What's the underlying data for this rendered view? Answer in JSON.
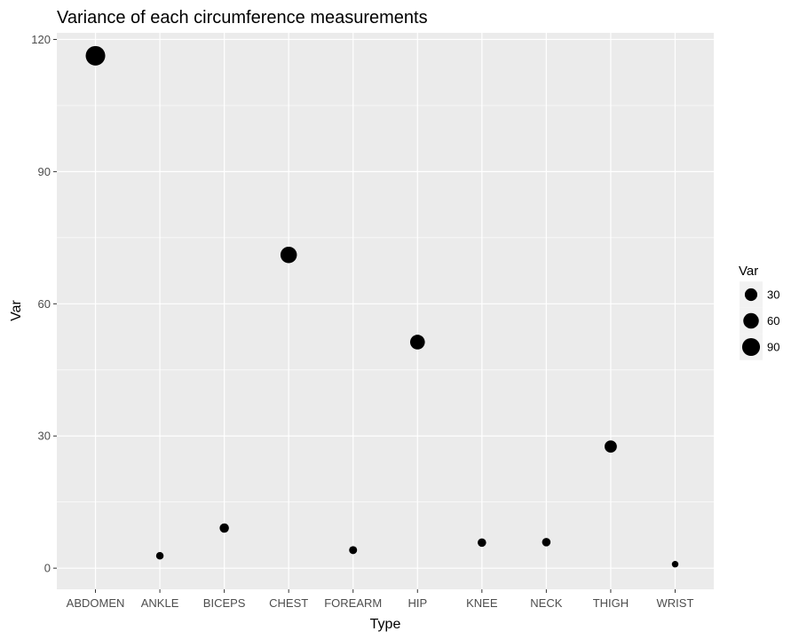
{
  "chart_data": {
    "type": "scatter",
    "title": "Variance of each circumference measurements",
    "xlabel": "Type",
    "ylabel": "Var",
    "categories": [
      "ABDOMEN",
      "ANKLE",
      "BICEPS",
      "CHEST",
      "FOREARM",
      "HIP",
      "KNEE",
      "NECK",
      "THIGH",
      "WRIST"
    ],
    "values": [
      116.3,
      2.8,
      9.1,
      71.1,
      4.1,
      51.3,
      5.8,
      5.9,
      27.6,
      0.9
    ],
    "ylim": [
      -4.8,
      121.5
    ],
    "yticks": [
      0,
      30,
      60,
      90,
      120
    ],
    "grid": true,
    "legend": {
      "title": "Var",
      "position": "right",
      "items": [
        {
          "label": "30",
          "value": 30
        },
        {
          "label": "60",
          "value": 60
        },
        {
          "label": "90",
          "value": 90
        }
      ]
    },
    "colors": {
      "panel": "#ebebeb",
      "grid": "#ffffff",
      "point": "#000000"
    }
  }
}
